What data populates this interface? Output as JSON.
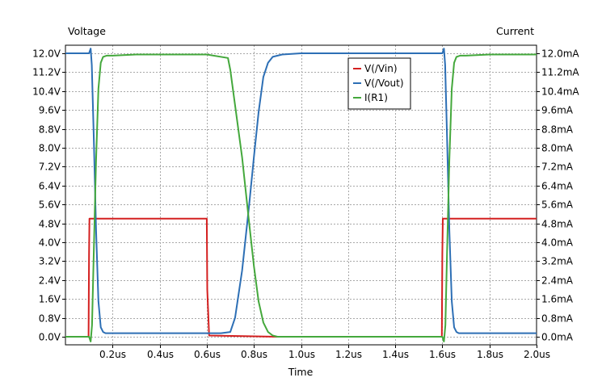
{
  "chart_data": {
    "type": "line",
    "title": "",
    "xlabel": "Time",
    "ylabel_left": "Voltage",
    "ylabel_right": "Current",
    "xlim": [
      0,
      2.0
    ],
    "ylim_left": [
      0,
      12
    ],
    "ylim_right": [
      0,
      12
    ],
    "grid": true,
    "legend_position": "top-center-right",
    "x_ticks": [
      {
        "v": 0.2,
        "label": "0.2us"
      },
      {
        "v": 0.4,
        "label": "0.4us"
      },
      {
        "v": 0.6,
        "label": "0.6us"
      },
      {
        "v": 0.8,
        "label": "0.8us"
      },
      {
        "v": 1.0,
        "label": "1.0us"
      },
      {
        "v": 1.2,
        "label": "1.2us"
      },
      {
        "v": 1.4,
        "label": "1.4us"
      },
      {
        "v": 1.6,
        "label": "1.6us"
      },
      {
        "v": 1.8,
        "label": "1.8us"
      },
      {
        "v": 2.0,
        "label": "2.0us"
      }
    ],
    "y_ticks_left": [
      {
        "v": 0.0,
        "label": "0.0V"
      },
      {
        "v": 0.8,
        "label": "0.8V"
      },
      {
        "v": 1.6,
        "label": "1.6V"
      },
      {
        "v": 2.4,
        "label": "2.4V"
      },
      {
        "v": 3.2,
        "label": "3.2V"
      },
      {
        "v": 4.0,
        "label": "4.0V"
      },
      {
        "v": 4.8,
        "label": "4.8V"
      },
      {
        "v": 5.6,
        "label": "5.6V"
      },
      {
        "v": 6.4,
        "label": "6.4V"
      },
      {
        "v": 7.2,
        "label": "7.2V"
      },
      {
        "v": 8.0,
        "label": "8.0V"
      },
      {
        "v": 8.8,
        "label": "8.8V"
      },
      {
        "v": 9.6,
        "label": "9.6V"
      },
      {
        "v": 10.4,
        "label": "10.4V"
      },
      {
        "v": 11.2,
        "label": "11.2V"
      },
      {
        "v": 12.0,
        "label": "12.0V"
      }
    ],
    "y_ticks_right": [
      {
        "v": 0.0,
        "label": "0.0mA"
      },
      {
        "v": 0.8,
        "label": "0.8mA"
      },
      {
        "v": 1.6,
        "label": "1.6mA"
      },
      {
        "v": 2.4,
        "label": "2.4mA"
      },
      {
        "v": 3.2,
        "label": "3.2mA"
      },
      {
        "v": 4.0,
        "label": "4.0mA"
      },
      {
        "v": 4.8,
        "label": "4.8mA"
      },
      {
        "v": 5.6,
        "label": "5.6mA"
      },
      {
        "v": 6.4,
        "label": "6.4mA"
      },
      {
        "v": 7.2,
        "label": "7.2mA"
      },
      {
        "v": 8.0,
        "label": "8.0mA"
      },
      {
        "v": 8.8,
        "label": "8.8mA"
      },
      {
        "v": 9.6,
        "label": "9.6mA"
      },
      {
        "v": 10.4,
        "label": "10.4mA"
      },
      {
        "v": 11.2,
        "label": "11.2mA"
      },
      {
        "v": 12.0,
        "label": "12.0mA"
      }
    ],
    "series": [
      {
        "name": "V(/Vin)",
        "axis": "left",
        "color": "#d42020",
        "x": [
          0,
          0.098,
          0.1,
          0.102,
          0.6,
          0.602,
          0.61,
          0.9,
          1.598,
          1.6,
          1.602,
          2.0
        ],
        "y": [
          0,
          0,
          3.5,
          5.0,
          5.0,
          2.0,
          0.05,
          0,
          0,
          3.5,
          5.0,
          5.0
        ]
      },
      {
        "name": "V(/Vout)",
        "axis": "left",
        "color": "#2d6fb5",
        "x": [
          0,
          0.1,
          0.107,
          0.112,
          0.12,
          0.13,
          0.14,
          0.15,
          0.16,
          0.17,
          0.2,
          0.6,
          0.66,
          0.7,
          0.72,
          0.75,
          0.78,
          0.8,
          0.82,
          0.84,
          0.86,
          0.88,
          0.92,
          1.0,
          1.6,
          1.607,
          1.612,
          1.62,
          1.63,
          1.64,
          1.65,
          1.66,
          1.67,
          1.7,
          2.0
        ],
        "y": [
          12,
          12,
          12.2,
          11.5,
          8.5,
          4.5,
          1.5,
          0.4,
          0.2,
          0.15,
          0.15,
          0.15,
          0.15,
          0.2,
          0.8,
          2.8,
          5.6,
          7.6,
          9.5,
          11.0,
          11.6,
          11.85,
          11.95,
          12,
          12,
          12.2,
          11.5,
          8.5,
          4.5,
          1.5,
          0.4,
          0.2,
          0.15,
          0.15,
          0.15
        ]
      },
      {
        "name": "I(R1)",
        "axis": "right",
        "color": "#44a83c",
        "x": [
          0,
          0.1,
          0.107,
          0.113,
          0.12,
          0.13,
          0.14,
          0.15,
          0.16,
          0.175,
          0.2,
          0.3,
          0.6,
          0.69,
          0.7,
          0.72,
          0.75,
          0.78,
          0.8,
          0.82,
          0.84,
          0.86,
          0.88,
          0.9,
          0.92,
          1.0,
          1.6,
          1.607,
          1.613,
          1.62,
          1.63,
          1.64,
          1.65,
          1.66,
          1.675,
          1.7,
          1.8,
          2.0
        ],
        "y": [
          0,
          0,
          -0.2,
          0.5,
          3.5,
          7.5,
          10.5,
          11.6,
          11.85,
          11.9,
          11.9,
          11.95,
          11.95,
          11.8,
          11.3,
          9.8,
          7.6,
          4.8,
          3.0,
          1.5,
          0.6,
          0.2,
          0.05,
          0,
          0,
          0,
          0,
          -0.2,
          0.5,
          3.5,
          7.5,
          10.5,
          11.6,
          11.85,
          11.9,
          11.9,
          11.95,
          11.95
        ]
      }
    ]
  }
}
